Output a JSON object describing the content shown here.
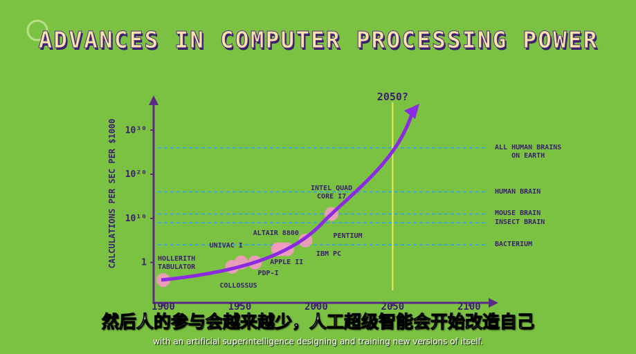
{
  "title": "ADVANCES IN COMPUTER PROCESSING POWER",
  "chart_data": {
    "type": "scatter",
    "y_label": "CALCULATIONS PER SEC PER $1000",
    "log_scale": true,
    "xlim": [
      1894,
      2115
    ],
    "ylim": [
      1e-09,
      1e+36
    ],
    "xticks": [
      1900,
      1950,
      2000,
      2050,
      2100
    ],
    "yticks": [
      {
        "value": 1,
        "label": "1"
      },
      {
        "value": 10000000000.0,
        "label": "10¹⁰"
      },
      {
        "value": 1e+20,
        "label": "10²⁰"
      },
      {
        "value": 1e+30,
        "label": "10³⁰"
      }
    ],
    "x": [
      1900,
      1945,
      1951,
      1960,
      1975,
      1977,
      1981,
      1993,
      2010
    ],
    "values": [
      0.0001,
      0.1,
      1,
      1,
      1000,
      1000,
      1000,
      100000,
      100000000000
    ],
    "point_labels": [
      "HOLLERITH\nTABULATOR",
      "COLLOSSUS",
      "UNIVAC I",
      "PDP-I",
      "ALTAIR 8800",
      "APPLE II",
      "IBM PC",
      "PENTIUM",
      "INTEL QUAD\nCORE I7"
    ],
    "color": "#f49ac1",
    "trend_color": "#8a2be2",
    "reference_lines": [
      {
        "label": "ALL HUMAN BRAINS\nON EARTH",
        "value": 1e+26
      },
      {
        "label": "HUMAN BRAIN",
        "value": 1e+16
      },
      {
        "label": "MOUSE BRAIN",
        "value": 100000000000.0
      },
      {
        "label": "INSECT BRAIN",
        "value": 1000000000.0
      },
      {
        "label": "BACTERIUM",
        "value": 10000
      }
    ],
    "vline": {
      "value": 2050,
      "label": "2050?"
    }
  },
  "subtitles": {
    "zh": "然后人的参与会越来越少，人工超级智能会开始改造自己",
    "en": "with an artificial superintelligence designing and training new versions of itself."
  }
}
